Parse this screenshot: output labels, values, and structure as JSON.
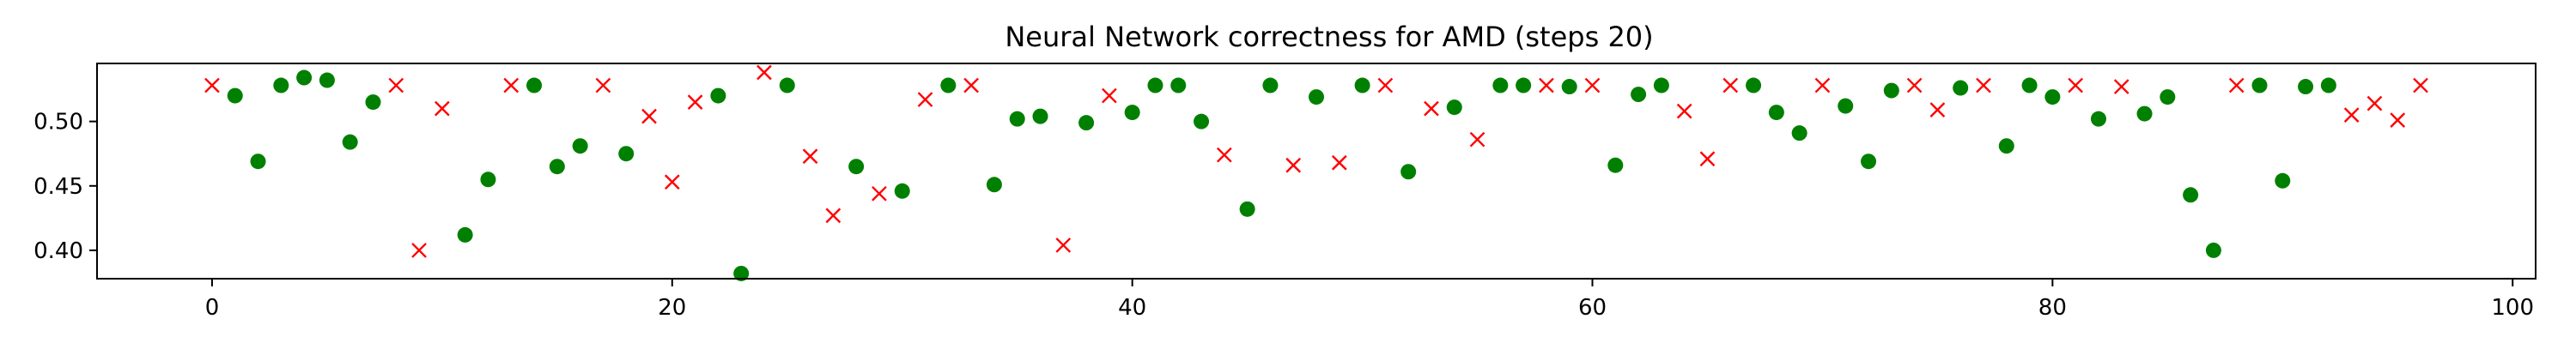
{
  "chart_data": {
    "type": "scatter",
    "title": "Neural Network correctness for AMD (steps 20)",
    "xlabel": "",
    "ylabel": "",
    "xlim": [
      -5,
      101
    ],
    "ylim": [
      0.378,
      0.545
    ],
    "xticks": [
      0,
      20,
      40,
      60,
      80,
      100
    ],
    "xtick_labels": [
      "0",
      "20",
      "40",
      "60",
      "80",
      "100"
    ],
    "yticks": [
      0.4,
      0.45,
      0.5
    ],
    "ytick_labels": [
      "0.40",
      "0.45",
      "0.50"
    ],
    "grid": false,
    "legend": "none",
    "series": [
      {
        "marker": "circle",
        "color": "#008000",
        "points": [
          [
            1,
            0.52
          ],
          [
            2,
            0.469
          ],
          [
            3,
            0.528
          ],
          [
            4,
            0.534
          ],
          [
            5,
            0.532
          ],
          [
            6,
            0.484
          ],
          [
            7,
            0.515
          ],
          [
            11,
            0.412
          ],
          [
            12,
            0.455
          ],
          [
            14,
            0.528
          ],
          [
            15,
            0.465
          ],
          [
            16,
            0.481
          ],
          [
            18,
            0.475
          ],
          [
            22,
            0.52
          ],
          [
            23,
            0.382
          ],
          [
            25,
            0.528
          ],
          [
            28,
            0.465
          ],
          [
            30,
            0.446
          ],
          [
            32,
            0.528
          ],
          [
            34,
            0.451
          ],
          [
            35,
            0.502
          ],
          [
            36,
            0.504
          ],
          [
            38,
            0.499
          ],
          [
            40,
            0.507
          ],
          [
            41,
            0.528
          ],
          [
            42,
            0.528
          ],
          [
            43,
            0.5
          ],
          [
            45,
            0.432
          ],
          [
            46,
            0.528
          ],
          [
            48,
            0.519
          ],
          [
            50,
            0.528
          ],
          [
            52,
            0.461
          ],
          [
            54,
            0.511
          ],
          [
            56,
            0.528
          ],
          [
            57,
            0.528
          ],
          [
            59,
            0.527
          ],
          [
            61,
            0.466
          ],
          [
            62,
            0.521
          ],
          [
            63,
            0.528
          ],
          [
            67,
            0.528
          ],
          [
            68,
            0.507
          ],
          [
            69,
            0.491
          ],
          [
            71,
            0.512
          ],
          [
            72,
            0.469
          ],
          [
            73,
            0.524
          ],
          [
            76,
            0.526
          ],
          [
            78,
            0.481
          ],
          [
            79,
            0.528
          ],
          [
            80,
            0.519
          ],
          [
            82,
            0.502
          ],
          [
            84,
            0.506
          ],
          [
            85,
            0.519
          ],
          [
            86,
            0.443
          ],
          [
            87,
            0.4
          ],
          [
            89,
            0.528
          ],
          [
            90,
            0.454
          ],
          [
            91,
            0.527
          ],
          [
            92,
            0.528
          ]
        ]
      },
      {
        "marker": "x",
        "color": "#ff0000",
        "points": [
          [
            0,
            0.528
          ],
          [
            8,
            0.528
          ],
          [
            9,
            0.4
          ],
          [
            10,
            0.51
          ],
          [
            13,
            0.528
          ],
          [
            17,
            0.528
          ],
          [
            19,
            0.504
          ],
          [
            20,
            0.453
          ],
          [
            21,
            0.515
          ],
          [
            24,
            0.538
          ],
          [
            26,
            0.473
          ],
          [
            27,
            0.427
          ],
          [
            29,
            0.444
          ],
          [
            31,
            0.517
          ],
          [
            33,
            0.528
          ],
          [
            37,
            0.404
          ],
          [
            39,
            0.52
          ],
          [
            44,
            0.474
          ],
          [
            47,
            0.466
          ],
          [
            49,
            0.468
          ],
          [
            51,
            0.528
          ],
          [
            53,
            0.51
          ],
          [
            55,
            0.486
          ],
          [
            58,
            0.528
          ],
          [
            60,
            0.528
          ],
          [
            64,
            0.508
          ],
          [
            65,
            0.471
          ],
          [
            66,
            0.528
          ],
          [
            70,
            0.528
          ],
          [
            74,
            0.528
          ],
          [
            75,
            0.509
          ],
          [
            77,
            0.528
          ],
          [
            81,
            0.528
          ],
          [
            83,
            0.527
          ],
          [
            88,
            0.528
          ],
          [
            93,
            0.505
          ],
          [
            94,
            0.514
          ],
          [
            95,
            0.501
          ],
          [
            96,
            0.528
          ]
        ]
      }
    ]
  }
}
